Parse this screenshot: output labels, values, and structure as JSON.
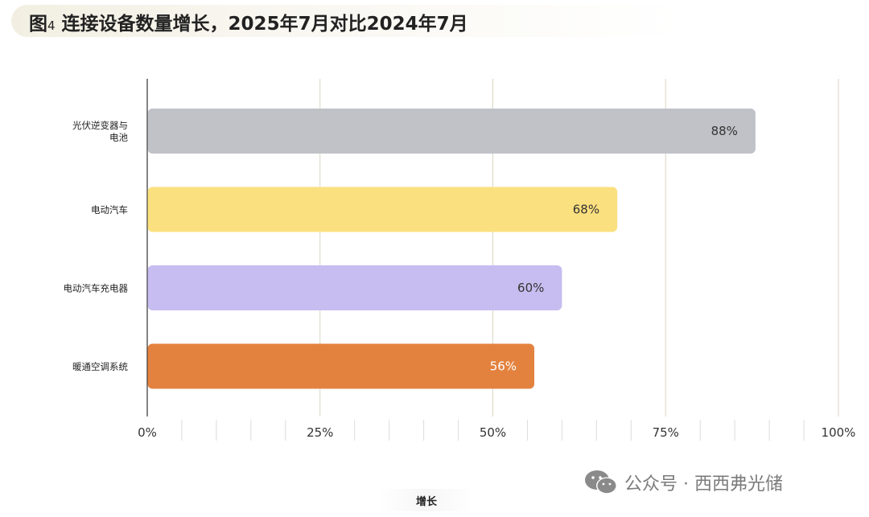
{
  "title": {
    "fig_label": "图",
    "fig_number": "4",
    "text": " 连接设备数量增长，2025年7月对比2024年7月"
  },
  "watermark": {
    "text": "公众号 · 西西弗光储",
    "icon": "wechat-icon"
  },
  "chart_data": {
    "type": "bar",
    "orientation": "horizontal",
    "categories": [
      [
        "光伏逆变器与",
        "电池"
      ],
      [
        "电动汽车"
      ],
      [
        "电动汽车充电器"
      ],
      [
        "暖通空调系统"
      ]
    ],
    "values": [
      88,
      68,
      60,
      56
    ],
    "value_labels": [
      "88%",
      "68%",
      "60%",
      "56%"
    ],
    "bar_colors": [
      "#c0c2c8",
      "#fbe07f",
      "#c7bdf0",
      "#e3823f"
    ],
    "label_colors": [
      "#333333",
      "#333333",
      "#333333",
      "#ffffff"
    ],
    "xlabel": "增长",
    "xlim": [
      0,
      100
    ],
    "xticks": [
      0,
      25,
      50,
      75,
      100
    ],
    "xtick_labels": [
      "0%",
      "25%",
      "50%",
      "75%",
      "100%"
    ],
    "grid": true
  }
}
